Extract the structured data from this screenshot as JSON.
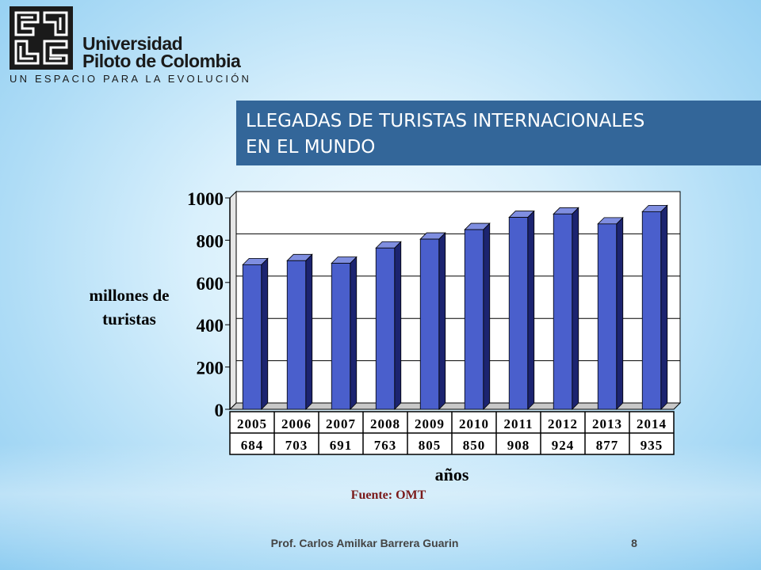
{
  "slide": {
    "logo": {
      "name_line1": "Universidad",
      "name_line2": "Piloto de Colombia",
      "tagline": "UN ESPACIO PARA LA EVOLUCIÓN"
    },
    "title": "LLEGADAS DE TURISTAS INTERNACIONALES\n    EN EL MUNDO",
    "source": "Fuente: OMT",
    "footer_author": "Prof. Carlos Amilkar Barrera Guarin",
    "page_number": "8"
  },
  "colors": {
    "banner": "#336699",
    "bar_front": "#4a5fcc",
    "bar_side": "#1c2470",
    "bar_top": "#7f8ee0"
  },
  "chart_data": {
    "type": "bar",
    "categories": [
      "2005",
      "2006",
      "2007",
      "2008",
      "2009",
      "2010",
      "2011",
      "2012",
      "2013",
      "2014"
    ],
    "values": [
      684,
      703,
      691,
      763,
      805,
      850,
      908,
      924,
      877,
      935
    ],
    "value_labels": [
      "684",
      "703",
      "691",
      "763",
      "805",
      "850",
      "908",
      "924",
      "877",
      "935"
    ],
    "yticks": [
      "0",
      "200",
      "400",
      "600",
      "800",
      "1000"
    ],
    "ylim": [
      0,
      1000
    ],
    "ylabel": "millones de turistas",
    "xlabel": "años",
    "grid": true,
    "legend": "none",
    "data_table": true
  }
}
